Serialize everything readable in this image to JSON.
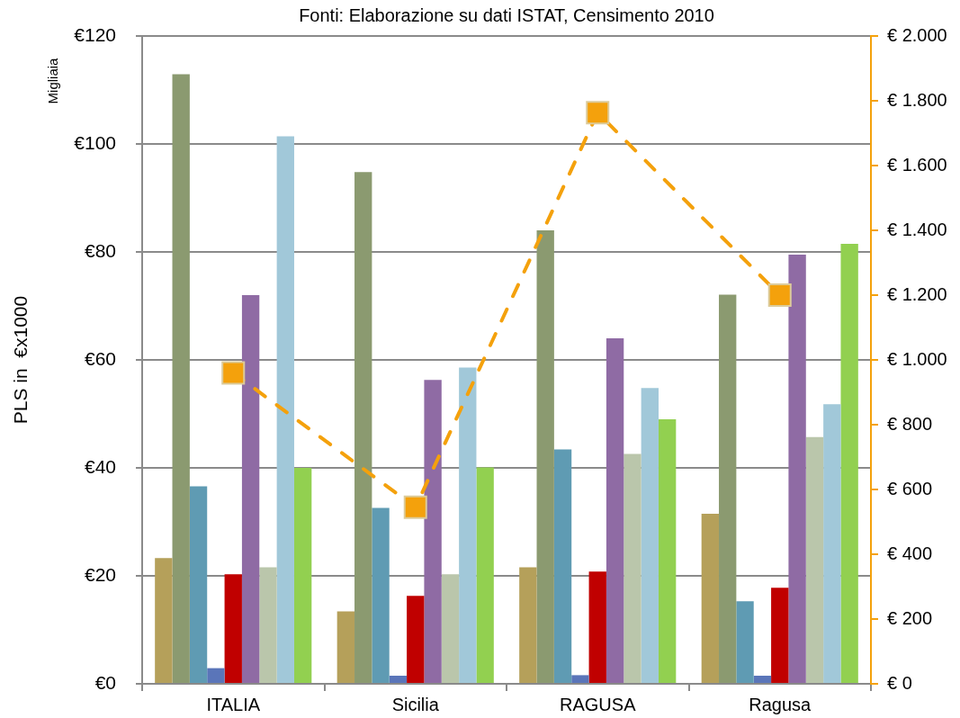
{
  "chart_data": {
    "type": "bar",
    "annotations": [
      "Fonti: Elaborazione su dati ISTAT, Censimento 2010",
      "Migliaia"
    ],
    "ylabel": "PLS in  €x1000",
    "categories": [
      "ITALIA",
      "Sicilia",
      "RAGUSA",
      "Ragusa"
    ],
    "series": [
      {
        "color": "#b5a05a",
        "values": [
          23.3,
          13.4,
          21.6,
          31.5
        ]
      },
      {
        "color": "#8b9a70",
        "values": [
          112.9,
          94.8,
          84.0,
          72.1
        ]
      },
      {
        "color": "#5f9bb3",
        "values": [
          36.6,
          32.6,
          43.4,
          15.3
        ]
      },
      {
        "color": "#5a75b9",
        "values": [
          2.9,
          1.5,
          1.6,
          1.5
        ]
      },
      {
        "color": "#c00000",
        "values": [
          20.3,
          16.3,
          20.8,
          17.8
        ]
      },
      {
        "color": "#8f6ba4",
        "values": [
          72.0,
          56.3,
          64.0,
          79.5
        ]
      },
      {
        "color": "#bac6ab",
        "values": [
          21.6,
          20.3,
          42.6,
          45.7
        ]
      },
      {
        "color": "#a1c8d9",
        "values": [
          101.4,
          58.6,
          54.8,
          51.8
        ]
      },
      {
        "color": "#92d050",
        "values": [
          40.0,
          40.1,
          49.0,
          81.5
        ]
      },
      {
        "type": "line",
        "axis": "y2",
        "color": "#f4a10c",
        "marker": "square",
        "line_style": "dashed",
        "values": [
          960,
          545,
          1763,
          1200
        ]
      }
    ],
    "ylim": [
      0,
      120
    ],
    "yticks": [
      {
        "value": 0,
        "label": "€0"
      },
      {
        "value": 20,
        "label": "€20"
      },
      {
        "value": 40,
        "label": "€40"
      },
      {
        "value": 60,
        "label": "€60"
      },
      {
        "value": 80,
        "label": "€80"
      },
      {
        "value": 100,
        "label": "€100"
      },
      {
        "value": 120,
        "label": "€120"
      }
    ],
    "y2lim": [
      0,
      2000
    ],
    "y2ticks": [
      {
        "value": 0,
        "label": "€ 0"
      },
      {
        "value": 200,
        "label": "€ 200"
      },
      {
        "value": 400,
        "label": "€ 400"
      },
      {
        "value": 600,
        "label": "€ 600"
      },
      {
        "value": 800,
        "label": "€ 800"
      },
      {
        "value": 1000,
        "label": "€ 1.000"
      },
      {
        "value": 1200,
        "label": "€ 1.200"
      },
      {
        "value": 1400,
        "label": "€ 1.400"
      },
      {
        "value": 1600,
        "label": "€ 1.600"
      },
      {
        "value": 1800,
        "label": "€ 1.800"
      },
      {
        "value": 2000,
        "label": "€ 2.000"
      }
    ],
    "grid": "y",
    "legend": false
  }
}
